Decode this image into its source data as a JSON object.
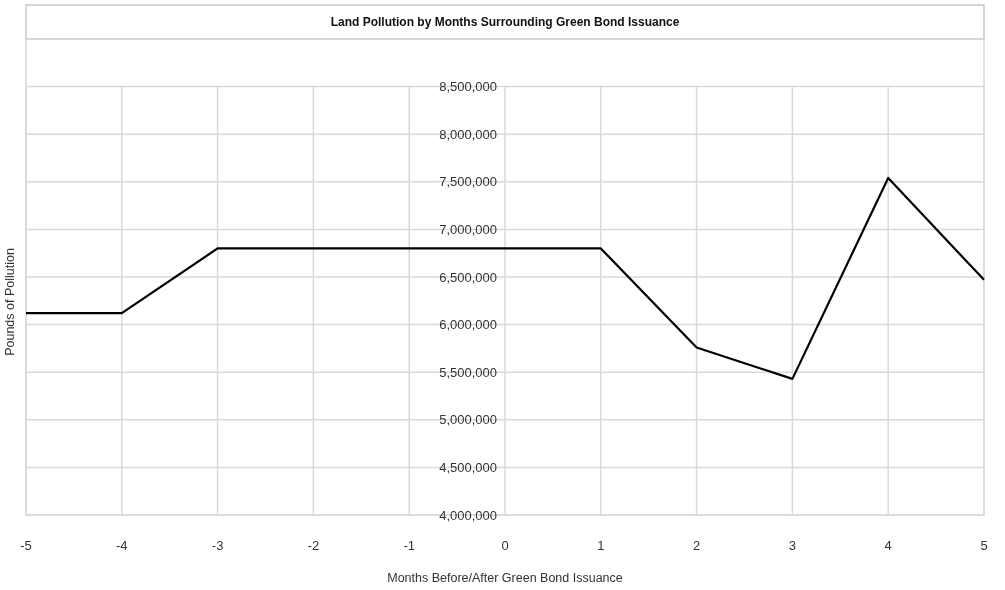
{
  "chart_data": {
    "type": "line",
    "title": "Land Pollution by Months Surrounding Green Bond Issuance",
    "xlabel": "Months Before/After Green Bond Issuance",
    "ylabel": "Pounds of Pollution",
    "categories": [
      "-5",
      "-4",
      "-3",
      "-2",
      "-1",
      "0",
      "1",
      "2",
      "3",
      "4",
      "5"
    ],
    "series": [
      {
        "color": "#000000",
        "values": [
          6120000,
          6120000,
          6800000,
          6800000,
          6800000,
          6800000,
          6800000,
          5760000,
          5430000,
          7540000,
          6470000
        ]
      }
    ],
    "ylim": [
      4000000,
      9000000
    ],
    "yticks": [
      {
        "value": 4000000,
        "label": "4,000,000"
      },
      {
        "value": 4500000,
        "label": "4,500,000"
      },
      {
        "value": 5000000,
        "label": "5,000,000"
      },
      {
        "value": 5500000,
        "label": "5,500,000"
      },
      {
        "value": 6000000,
        "label": "6,000,000"
      },
      {
        "value": 6500000,
        "label": "6,500,000"
      },
      {
        "value": 7000000,
        "label": "7,000,000"
      },
      {
        "value": 7500000,
        "label": "7,500,000"
      },
      {
        "value": 8000000,
        "label": "8,000,000"
      },
      {
        "value": 8500000,
        "label": "8,500,000"
      }
    ],
    "grid": true,
    "marker": "none",
    "line_style": "solid"
  }
}
